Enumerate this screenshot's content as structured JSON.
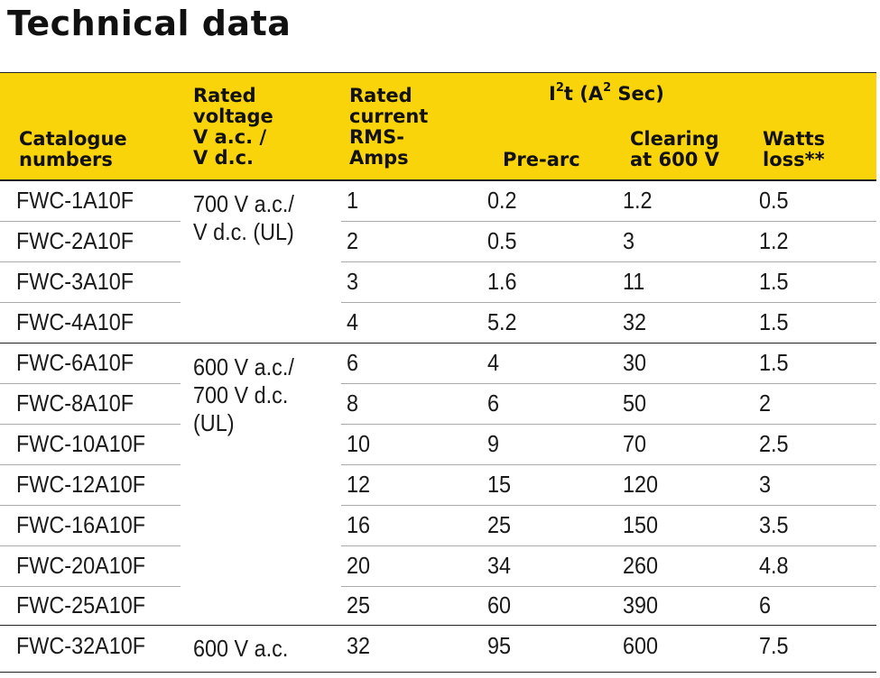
{
  "title": "Technical data",
  "header": {
    "catalogue": [
      "Catalogue",
      "numbers"
    ],
    "voltage": [
      "Rated",
      "voltage",
      "V a.c. /",
      "V d.c."
    ],
    "current": [
      "Rated",
      "current",
      "RMS-",
      "Amps"
    ],
    "i2t_prefix": "I",
    "i2t_sup1": "2",
    "i2t_mid": "t (A",
    "i2t_sup2": "2",
    "i2t_suffix": " Sec)",
    "prearc": "Pre-arc",
    "clearing": [
      "Clearing",
      "at 600 V"
    ],
    "watts": [
      "Watts",
      "loss**"
    ]
  },
  "voltage_groups": [
    {
      "lines": [
        "700 V a.c./",
        "V d.c. (UL)"
      ]
    },
    {
      "lines": [
        "600 V a.c./",
        "700 V d.c.",
        "(UL)"
      ]
    },
    {
      "lines": [
        "600 V a.c."
      ]
    }
  ],
  "rows": [
    {
      "catalogue": "FWC-1A10F",
      "current": "1",
      "prearc": "0.2",
      "clearing": "1.2",
      "watts": "0.5"
    },
    {
      "catalogue": "FWC-2A10F",
      "current": "2",
      "prearc": "0.5",
      "clearing": "3",
      "watts": "1.2"
    },
    {
      "catalogue": "FWC-3A10F",
      "current": "3",
      "prearc": "1.6",
      "clearing": "11",
      "watts": "1.5"
    },
    {
      "catalogue": "FWC-4A10F",
      "current": "4",
      "prearc": "5.2",
      "clearing": "32",
      "watts": "1.5"
    },
    {
      "catalogue": "FWC-6A10F",
      "current": "6",
      "prearc": "4",
      "clearing": "30",
      "watts": "1.5"
    },
    {
      "catalogue": "FWC-8A10F",
      "current": "8",
      "prearc": "6",
      "clearing": "50",
      "watts": "2"
    },
    {
      "catalogue": "FWC-10A10F",
      "current": "10",
      "prearc": "9",
      "clearing": "70",
      "watts": "2.5"
    },
    {
      "catalogue": "FWC-12A10F",
      "current": "12",
      "prearc": "15",
      "clearing": "120",
      "watts": "3"
    },
    {
      "catalogue": "FWC-16A10F",
      "current": "16",
      "prearc": "25",
      "clearing": "150",
      "watts": "3.5"
    },
    {
      "catalogue": "FWC-20A10F",
      "current": "20",
      "prearc": "34",
      "clearing": "260",
      "watts": "4.8"
    },
    {
      "catalogue": "FWC-25A10F",
      "current": "25",
      "prearc": "60",
      "clearing": "390",
      "watts": "6"
    },
    {
      "catalogue": "FWC-32A10F",
      "current": "32",
      "prearc": "95",
      "clearing": "600",
      "watts": "7.5"
    }
  ],
  "colors": {
    "header_bg": "#f9d40b",
    "rule": "#222222",
    "row_rule": "#aaaaaa"
  }
}
